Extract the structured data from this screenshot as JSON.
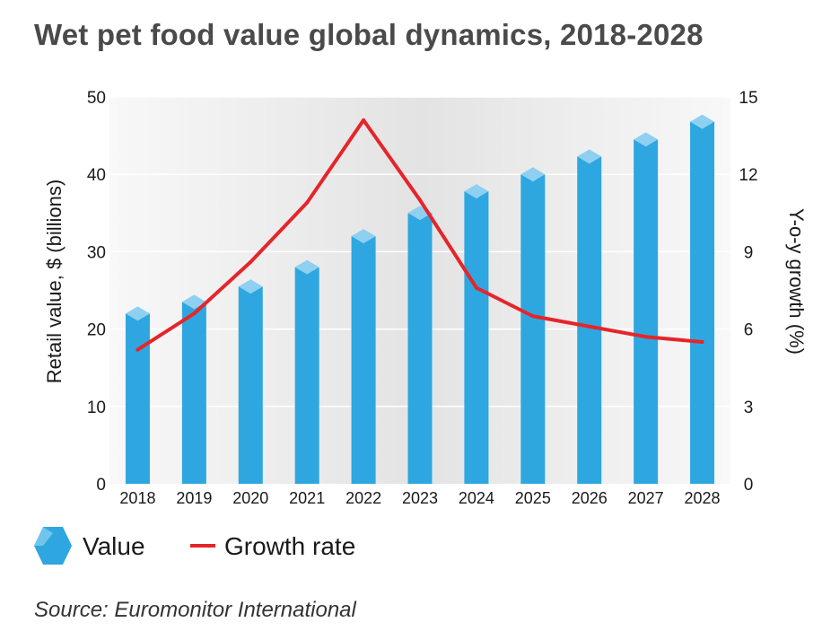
{
  "title": "Wet pet food value global dynamics, 2018-2028",
  "source": "Source: Euromonitor International",
  "colors": {
    "bar": "#2ea7e0",
    "bar_top": "#8fd0f1",
    "line": "#e5252a",
    "axis_text": "#1a1a1a",
    "panel_light": "#f8f8f8",
    "panel_dark": "#e3e3e3"
  },
  "chart_data": {
    "type": "bar",
    "title": "Wet pet food value global dynamics, 2018-2028",
    "categories": [
      "2018",
      "2019",
      "2020",
      "2021",
      "2022",
      "2023",
      "2024",
      "2025",
      "2026",
      "2027",
      "2028"
    ],
    "ylabel": "Retail value, $ (billions)",
    "ylim": [
      0,
      50
    ],
    "yticks": [
      0,
      10,
      20,
      30,
      40,
      50
    ],
    "y2label": "Y-o-y growth (%)",
    "y2lim": [
      0,
      15
    ],
    "y2ticks": [
      0,
      3,
      6,
      9,
      12,
      15
    ],
    "grid": true,
    "series": [
      {
        "name": "Value",
        "type": "bar",
        "axis": "left",
        "values": [
          22.0,
          23.5,
          25.5,
          28.0,
          32.0,
          35.0,
          37.8,
          40.0,
          42.3,
          44.5,
          46.8
        ]
      },
      {
        "name": "Growth rate",
        "type": "line",
        "axis": "right",
        "values": [
          5.2,
          6.6,
          8.6,
          10.9,
          14.1,
          11.0,
          7.6,
          6.5,
          6.1,
          5.7,
          5.5
        ]
      }
    ],
    "legend": {
      "position": "bottom-left",
      "entries": [
        "Value",
        "Growth rate"
      ]
    }
  }
}
